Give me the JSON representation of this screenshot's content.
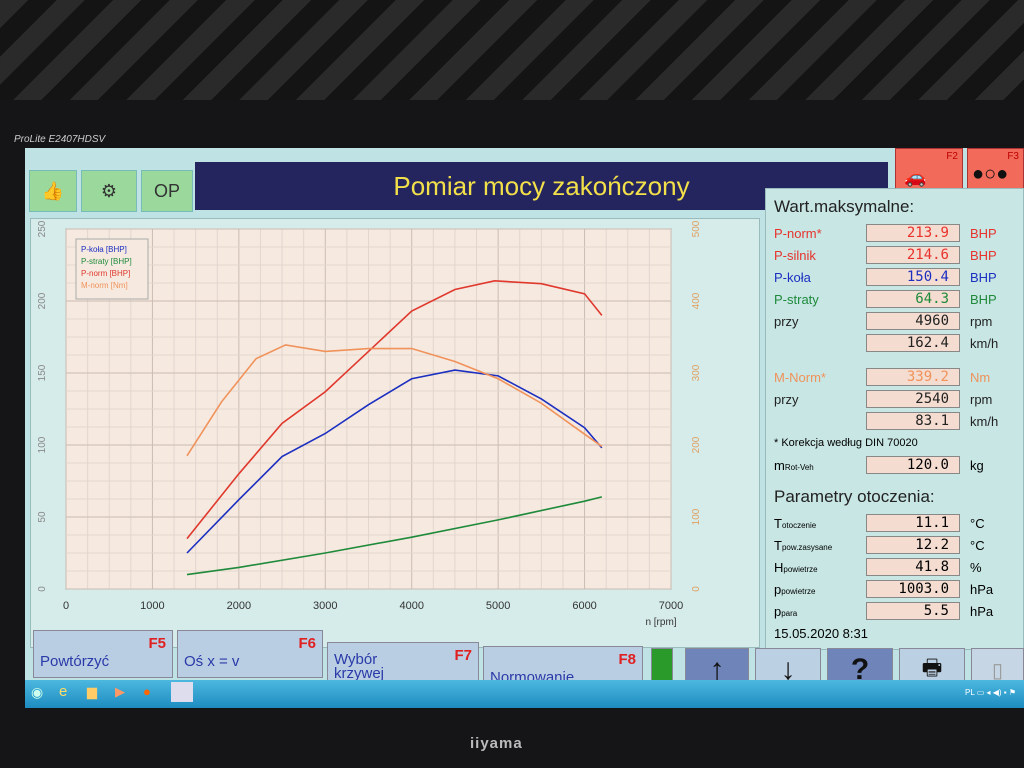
{
  "monitor": {
    "model": "ProLite E2407HDSV",
    "brand": "iiyama"
  },
  "header": {
    "title": "Pomiar mocy zakończony",
    "op_label": "OP",
    "f2_label": "F2",
    "f3_label": "F3"
  },
  "max_values": {
    "heading": "Wart.maksymalne:",
    "rows": [
      {
        "label": "P-norm*",
        "value": "213.9",
        "unit": "BHP",
        "color": "#e8322c"
      },
      {
        "label": "P-silnik",
        "value": "214.6",
        "unit": "BHP",
        "color": "#e8322c"
      },
      {
        "label": "P-koła",
        "value": "150.4",
        "unit": "BHP",
        "color": "#1b2fc0"
      },
      {
        "label": "P-straty",
        "value": "64.3",
        "unit": "BHP",
        "color": "#1e8a3a"
      },
      {
        "label": "przy",
        "value": "4960",
        "unit": "rpm",
        "color": "#222222"
      },
      {
        "label": "",
        "value": "162.4",
        "unit": "km/h",
        "color": "#222222"
      },
      {
        "label": "M-Norm*",
        "value": "339.2",
        "unit": "Nm",
        "color": "#f0925a"
      },
      {
        "label": "przy",
        "value": "2540",
        "unit": "rpm",
        "color": "#222222"
      },
      {
        "label": "",
        "value": "83.1",
        "unit": "km/h",
        "color": "#222222"
      }
    ],
    "note": "* Korekcja według DIN 70020",
    "mass": {
      "label": "m",
      "sub": "Rot-Veh",
      "value": "120.0",
      "unit": "kg"
    }
  },
  "ambient": {
    "heading": "Parametry otoczenia:",
    "rows": [
      {
        "label": "T",
        "sub": "otoczenie",
        "value": "11.1",
        "unit": "°C"
      },
      {
        "label": "T",
        "sub": "pow.zasysane",
        "value": "12.2",
        "unit": "°C"
      },
      {
        "label": "H",
        "sub": "powietrze",
        "value": "41.8",
        "unit": "%"
      },
      {
        "label": "p",
        "sub": "powietrze",
        "value": "1003.0",
        "unit": "hPa"
      },
      {
        "label": "p",
        "sub": "para",
        "value": "5.5",
        "unit": "hPa"
      }
    ],
    "datetime": "15.05.2020  8:31"
  },
  "buttons": [
    {
      "label": "Powtórzyć",
      "key": "F5"
    },
    {
      "label": "Oś x = v",
      "key": "F6"
    },
    {
      "label": "Wybór krzywej",
      "key": "F7"
    },
    {
      "label": "Normowanie",
      "key": "F8"
    }
  ],
  "icon_buttons": {
    "up": "↑",
    "down": "↓",
    "help": "?"
  },
  "chart_data": {
    "type": "line",
    "xlabel": "n [rpm]",
    "xlim": [
      0,
      7000
    ],
    "xticks": [
      "0",
      "1000",
      "2000",
      "3000",
      "4000",
      "5000",
      "6000",
      "7000"
    ],
    "ylim_left": [
      0,
      250
    ],
    "yticks_left": [
      "0",
      "50",
      "100",
      "150",
      "200",
      "250"
    ],
    "ylim_right": [
      0,
      500
    ],
    "yticks_right": [
      "0",
      "100",
      "200",
      "300",
      "400",
      "500"
    ],
    "grid": true,
    "legend": "top-left",
    "series": [
      {
        "name": "P-koła [BHP]",
        "axis": "left",
        "color": "#1b2fc0",
        "x": [
          1400,
          2000,
          2500,
          3000,
          3500,
          4000,
          4500,
          5000,
          5500,
          6000,
          6200
        ],
        "y": [
          25,
          62,
          92,
          108,
          128,
          146,
          152,
          148,
          132,
          112,
          98
        ]
      },
      {
        "name": "P-straty [BHP]",
        "axis": "left",
        "color": "#1e8a3a",
        "x": [
          1400,
          2000,
          3000,
          4000,
          5000,
          6000,
          6200
        ],
        "y": [
          10,
          15,
          25,
          36,
          48,
          61,
          64
        ]
      },
      {
        "name": "P-norm [BHP]",
        "axis": "left",
        "color": "#e0382c",
        "x": [
          1400,
          2000,
          2500,
          3000,
          3500,
          4000,
          4500,
          4960,
          5500,
          6000,
          6200
        ],
        "y": [
          35,
          80,
          115,
          137,
          165,
          193,
          208,
          214,
          212,
          205,
          190
        ]
      },
      {
        "name": "M-norm [Nm]",
        "axis": "right",
        "color": "#f0925a",
        "x": [
          1400,
          1800,
          2200,
          2540,
          3000,
          3500,
          4000,
          4500,
          5000,
          5500,
          6000,
          6200
        ],
        "y": [
          185,
          260,
          320,
          339,
          330,
          334,
          334,
          316,
          292,
          258,
          215,
          198
        ]
      }
    ]
  }
}
